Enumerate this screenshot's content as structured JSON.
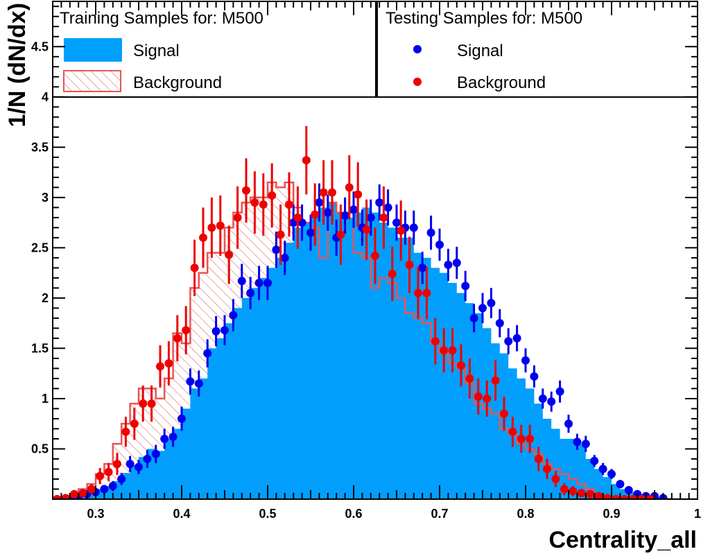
{
  "chart_data": {
    "type": "histogram",
    "xlabel": "Centrality_all",
    "ylabel": "1/N (dN/dx)",
    "xlim": [
      0.25,
      1.0
    ],
    "ylim": [
      0,
      4.95
    ],
    "x_ticks": [
      "0.3",
      "0.4",
      "0.5",
      "0.6",
      "0.7",
      "0.8",
      "0.9",
      "1"
    ],
    "y_ticks": [
      "0.5",
      "1",
      "1.5",
      "2",
      "2.5",
      "3",
      "3.5",
      "4",
      "4.5"
    ],
    "grid": false,
    "legend": {
      "training_title": "Training Samples for: M500",
      "testing_title": "Testing Samples for: M500",
      "training_entries": [
        "Signal",
        "Background"
      ],
      "testing_entries": [
        "Signal",
        "Background"
      ]
    },
    "colors": {
      "signal_fill": "#00a0ff",
      "signal_hatch": "#3c6fd0",
      "background_line": "#e85555",
      "background_hatch": "#c84040",
      "test_signal": "#0000ee",
      "test_background": "#ee0000"
    },
    "bin_edges": [
      0.25,
      0.26,
      0.27,
      0.28,
      0.29,
      0.3,
      0.31,
      0.32,
      0.33,
      0.34,
      0.35,
      0.36,
      0.37,
      0.38,
      0.39,
      0.4,
      0.41,
      0.42,
      0.43,
      0.44,
      0.45,
      0.46,
      0.47,
      0.48,
      0.49,
      0.5,
      0.51,
      0.52,
      0.53,
      0.54,
      0.55,
      0.56,
      0.57,
      0.58,
      0.59,
      0.6,
      0.61,
      0.62,
      0.63,
      0.64,
      0.65,
      0.66,
      0.67,
      0.68,
      0.69,
      0.7,
      0.71,
      0.72,
      0.73,
      0.74,
      0.75,
      0.76,
      0.77,
      0.78,
      0.79,
      0.8,
      0.81,
      0.82,
      0.83,
      0.84,
      0.85,
      0.86,
      0.87,
      0.88,
      0.89,
      0.9,
      0.91,
      0.92,
      0.93,
      0.94,
      0.95,
      0.96,
      0.97,
      0.98,
      0.99,
      1.0
    ],
    "series": [
      {
        "name": "Signal",
        "role": "training",
        "values": [
          0.0,
          0.01,
          0.02,
          0.05,
          0.07,
          0.1,
          0.13,
          0.18,
          0.26,
          0.34,
          0.42,
          0.5,
          0.48,
          0.6,
          0.7,
          0.9,
          1.1,
          1.2,
          1.5,
          1.6,
          1.75,
          1.9,
          2.0,
          2.1,
          2.2,
          2.3,
          2.4,
          2.55,
          2.7,
          2.75,
          2.8,
          2.9,
          2.95,
          2.85,
          2.8,
          2.85,
          2.9,
          2.85,
          2.75,
          2.7,
          2.6,
          2.6,
          2.45,
          2.4,
          2.3,
          2.25,
          2.15,
          2.05,
          1.95,
          1.85,
          1.7,
          1.55,
          1.45,
          1.3,
          1.2,
          1.1,
          0.95,
          0.8,
          0.7,
          0.6,
          0.6,
          0.55,
          0.4,
          0.3,
          0.22,
          0.15,
          0.1,
          0.07,
          0.05,
          0.03,
          0.02,
          0.01,
          0.0,
          0.0,
          0.0
        ]
      },
      {
        "name": "Background",
        "role": "training",
        "values": [
          0.0,
          0.02,
          0.05,
          0.1,
          0.15,
          0.25,
          0.35,
          0.55,
          0.75,
          0.95,
          1.1,
          1.1,
          1.0,
          1.2,
          1.65,
          1.55,
          2.1,
          2.25,
          2.45,
          2.45,
          2.7,
          2.85,
          2.95,
          3.0,
          3.0,
          3.15,
          3.1,
          3.15,
          2.9,
          2.75,
          2.7,
          2.4,
          2.95,
          2.85,
          2.85,
          2.45,
          2.4,
          2.1,
          2.2,
          2.15,
          2.0,
          1.85,
          1.8,
          1.75,
          1.55,
          1.45,
          1.35,
          1.3,
          1.15,
          0.95,
          0.9,
          0.85,
          0.7,
          0.65,
          0.55,
          0.5,
          0.45,
          0.35,
          0.3,
          0.25,
          0.2,
          0.15,
          0.1,
          0.05,
          0.03,
          0.02,
          0.01,
          0.0,
          0.0,
          0.0,
          0.0,
          0.0,
          0.0,
          0.0,
          0.0
        ]
      },
      {
        "name": "Signal",
        "role": "testing",
        "x": [
          0.255,
          0.27,
          0.28,
          0.29,
          0.3,
          0.31,
          0.32,
          0.33,
          0.34,
          0.35,
          0.36,
          0.37,
          0.38,
          0.39,
          0.4,
          0.41,
          0.42,
          0.43,
          0.44,
          0.45,
          0.46,
          0.47,
          0.48,
          0.49,
          0.5,
          0.51,
          0.52,
          0.53,
          0.54,
          0.55,
          0.56,
          0.57,
          0.58,
          0.59,
          0.6,
          0.61,
          0.62,
          0.63,
          0.64,
          0.65,
          0.66,
          0.67,
          0.68,
          0.69,
          0.7,
          0.71,
          0.72,
          0.73,
          0.74,
          0.75,
          0.76,
          0.77,
          0.78,
          0.79,
          0.8,
          0.81,
          0.82,
          0.83,
          0.84,
          0.85,
          0.86,
          0.87,
          0.88,
          0.89,
          0.9,
          0.91,
          0.92,
          0.93,
          0.94,
          0.95,
          0.96
        ],
        "y": [
          0.0,
          0.0,
          0.02,
          0.05,
          0.07,
          0.1,
          0.13,
          0.2,
          0.35,
          0.32,
          0.4,
          0.45,
          0.6,
          0.62,
          0.8,
          1.17,
          1.15,
          1.45,
          1.67,
          1.68,
          1.83,
          2.17,
          2.05,
          2.15,
          2.15,
          2.48,
          2.4,
          2.75,
          2.75,
          2.65,
          2.95,
          2.85,
          2.6,
          2.82,
          2.88,
          2.7,
          2.8,
          2.95,
          2.9,
          2.75,
          2.7,
          2.7,
          2.3,
          2.65,
          2.53,
          2.33,
          2.35,
          2.12,
          1.8,
          1.9,
          1.95,
          1.75,
          1.57,
          1.6,
          1.38,
          1.22,
          1.0,
          0.97,
          1.07,
          0.75,
          0.57,
          0.55,
          0.38,
          0.3,
          0.25,
          0.15,
          0.09,
          0.05,
          0.03,
          0.03,
          0.01
        ],
        "err": [
          0.0,
          0.01,
          0.02,
          0.03,
          0.04,
          0.04,
          0.05,
          0.06,
          0.08,
          0.07,
          0.09,
          0.09,
          0.1,
          0.1,
          0.12,
          0.13,
          0.13,
          0.14,
          0.15,
          0.15,
          0.16,
          0.17,
          0.16,
          0.17,
          0.17,
          0.18,
          0.17,
          0.18,
          0.18,
          0.18,
          0.19,
          0.18,
          0.18,
          0.18,
          0.18,
          0.18,
          0.18,
          0.18,
          0.18,
          0.18,
          0.17,
          0.17,
          0.16,
          0.17,
          0.16,
          0.16,
          0.16,
          0.15,
          0.14,
          0.15,
          0.15,
          0.14,
          0.13,
          0.13,
          0.12,
          0.11,
          0.1,
          0.1,
          0.11,
          0.09,
          0.08,
          0.08,
          0.06,
          0.06,
          0.05,
          0.04,
          0.03,
          0.02,
          0.02,
          0.02,
          0.01
        ]
      },
      {
        "name": "Background",
        "role": "testing",
        "x": [
          0.255,
          0.265,
          0.275,
          0.285,
          0.295,
          0.305,
          0.315,
          0.325,
          0.335,
          0.345,
          0.355,
          0.365,
          0.375,
          0.385,
          0.395,
          0.405,
          0.415,
          0.425,
          0.435,
          0.445,
          0.455,
          0.465,
          0.475,
          0.485,
          0.495,
          0.505,
          0.515,
          0.525,
          0.535,
          0.545,
          0.555,
          0.565,
          0.575,
          0.585,
          0.595,
          0.605,
          0.615,
          0.625,
          0.635,
          0.645,
          0.655,
          0.665,
          0.675,
          0.685,
          0.695,
          0.705,
          0.715,
          0.725,
          0.735,
          0.745,
          0.755,
          0.765,
          0.775,
          0.785,
          0.795,
          0.805,
          0.815,
          0.825,
          0.835,
          0.845,
          0.855,
          0.865,
          0.875,
          0.885,
          0.895,
          0.905,
          0.915,
          0.925,
          0.935,
          0.945
        ],
        "y": [
          0.0,
          0.01,
          0.05,
          0.06,
          0.1,
          0.23,
          0.27,
          0.35,
          0.67,
          0.75,
          0.95,
          0.95,
          1.32,
          1.35,
          1.6,
          1.68,
          2.3,
          2.6,
          2.7,
          2.72,
          2.43,
          2.8,
          3.07,
          2.95,
          2.93,
          3.02,
          2.63,
          2.93,
          2.8,
          3.37,
          2.83,
          3.05,
          3.05,
          2.63,
          3.1,
          3.03,
          2.68,
          2.42,
          2.8,
          2.24,
          2.67,
          2.33,
          2.05,
          2.05,
          1.57,
          1.48,
          1.48,
          1.33,
          1.2,
          1.02,
          1.0,
          1.18,
          0.85,
          0.67,
          0.6,
          0.6,
          0.4,
          0.3,
          0.2,
          0.1,
          0.08,
          0.06,
          0.05,
          0.03,
          0.01,
          0.0,
          0.0,
          0.0,
          0.0,
          0.0
        ],
        "err": [
          0.0,
          0.01,
          0.03,
          0.04,
          0.05,
          0.08,
          0.09,
          0.11,
          0.15,
          0.16,
          0.18,
          0.18,
          0.21,
          0.22,
          0.23,
          0.24,
          0.28,
          0.3,
          0.3,
          0.3,
          0.29,
          0.31,
          0.32,
          0.31,
          0.31,
          0.32,
          0.3,
          0.32,
          0.31,
          0.34,
          0.31,
          0.32,
          0.32,
          0.3,
          0.32,
          0.32,
          0.3,
          0.28,
          0.31,
          0.27,
          0.3,
          0.28,
          0.26,
          0.26,
          0.23,
          0.22,
          0.22,
          0.21,
          0.2,
          0.18,
          0.18,
          0.2,
          0.17,
          0.15,
          0.14,
          0.14,
          0.12,
          0.1,
          0.08,
          0.06,
          0.05,
          0.04,
          0.04,
          0.03,
          0.01,
          0.0,
          0.0,
          0.0,
          0.0,
          0.0
        ]
      }
    ]
  }
}
